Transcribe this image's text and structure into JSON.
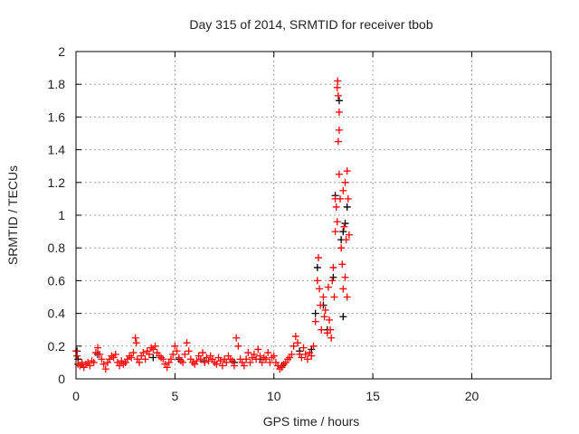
{
  "chart_data": {
    "type": "scatter",
    "title": "Day 315 of 2014, SRMTID for receiver tbob",
    "xlabel": "GPS time / hours",
    "ylabel": "SRMTID / TECUs",
    "xlim": [
      0,
      24
    ],
    "ylim": [
      0,
      2
    ],
    "xticks": [
      "0",
      "5",
      "10",
      "15",
      "20"
    ],
    "xtick_values": [
      0,
      5,
      10,
      15,
      20
    ],
    "yticks": [
      "0",
      "0.2",
      "0.4",
      "0.6",
      "0.8",
      "1",
      "1.2",
      "1.4",
      "1.6",
      "1.8",
      "2"
    ],
    "ytick_values": [
      0,
      0.2,
      0.4,
      0.6,
      0.8,
      1,
      1.2,
      1.4,
      1.6,
      1.8,
      2
    ],
    "grid": true,
    "series": [
      {
        "name": "black",
        "color": "#000000",
        "points": [
          [
            0.05,
            0.17
          ],
          [
            0.1,
            0.12
          ],
          [
            0.3,
            0.09
          ],
          [
            1.1,
            0.15
          ],
          [
            2.5,
            0.1
          ],
          [
            3.9,
            0.13
          ],
          [
            5.2,
            0.12
          ],
          [
            6.5,
            0.11
          ],
          [
            8.0,
            0.1
          ],
          [
            9.3,
            0.12
          ],
          [
            10.4,
            0.08
          ],
          [
            11.3,
            0.17
          ],
          [
            11.9,
            0.18
          ],
          [
            12.1,
            0.4
          ],
          [
            12.2,
            0.68
          ],
          [
            12.5,
            0.45
          ],
          [
            12.7,
            0.3
          ],
          [
            13.0,
            0.62
          ],
          [
            13.1,
            1.12
          ],
          [
            13.3,
            1.7
          ],
          [
            13.4,
            0.85
          ],
          [
            13.5,
            0.38
          ],
          [
            13.6,
            0.95
          ],
          [
            13.7,
            1.05
          ],
          [
            13.5,
            0.9
          ]
        ]
      },
      {
        "name": "red",
        "color": "#ff0000",
        "points": [
          [
            0.0,
            0.17
          ],
          [
            0.05,
            0.14
          ],
          [
            0.1,
            0.09
          ],
          [
            0.2,
            0.08
          ],
          [
            0.3,
            0.1
          ],
          [
            0.4,
            0.07
          ],
          [
            0.5,
            0.09
          ],
          [
            0.6,
            0.1
          ],
          [
            0.7,
            0.08
          ],
          [
            0.8,
            0.11
          ],
          [
            0.9,
            0.1
          ],
          [
            1.0,
            0.16
          ],
          [
            1.1,
            0.19
          ],
          [
            1.2,
            0.15
          ],
          [
            1.3,
            0.12
          ],
          [
            1.4,
            0.09
          ],
          [
            1.5,
            0.06
          ],
          [
            1.6,
            0.1
          ],
          [
            1.7,
            0.12
          ],
          [
            1.8,
            0.14
          ],
          [
            1.9,
            0.13
          ],
          [
            2.0,
            0.15
          ],
          [
            2.1,
            0.1
          ],
          [
            2.2,
            0.08
          ],
          [
            2.3,
            0.11
          ],
          [
            2.4,
            0.09
          ],
          [
            2.5,
            0.1
          ],
          [
            2.6,
            0.12
          ],
          [
            2.7,
            0.14
          ],
          [
            2.8,
            0.13
          ],
          [
            2.9,
            0.16
          ],
          [
            3.0,
            0.25
          ],
          [
            3.05,
            0.22
          ],
          [
            3.1,
            0.12
          ],
          [
            3.2,
            0.1
          ],
          [
            3.3,
            0.14
          ],
          [
            3.4,
            0.16
          ],
          [
            3.5,
            0.12
          ],
          [
            3.6,
            0.17
          ],
          [
            3.7,
            0.15
          ],
          [
            3.8,
            0.19
          ],
          [
            3.9,
            0.18
          ],
          [
            4.0,
            0.2
          ],
          [
            4.1,
            0.16
          ],
          [
            4.2,
            0.14
          ],
          [
            4.3,
            0.13
          ],
          [
            4.4,
            0.12
          ],
          [
            4.5,
            0.09
          ],
          [
            4.6,
            0.07
          ],
          [
            4.7,
            0.1
          ],
          [
            4.8,
            0.12
          ],
          [
            4.9,
            0.15
          ],
          [
            5.0,
            0.2
          ],
          [
            5.1,
            0.17
          ],
          [
            5.2,
            0.13
          ],
          [
            5.3,
            0.11
          ],
          [
            5.4,
            0.1
          ],
          [
            5.5,
            0.15
          ],
          [
            5.6,
            0.22
          ],
          [
            5.7,
            0.17
          ],
          [
            5.8,
            0.12
          ],
          [
            5.9,
            0.1
          ],
          [
            6.0,
            0.09
          ],
          [
            6.1,
            0.11
          ],
          [
            6.2,
            0.14
          ],
          [
            6.3,
            0.12
          ],
          [
            6.4,
            0.16
          ],
          [
            6.5,
            0.1
          ],
          [
            6.6,
            0.13
          ],
          [
            6.7,
            0.11
          ],
          [
            6.8,
            0.14
          ],
          [
            6.9,
            0.12
          ],
          [
            7.0,
            0.1
          ],
          [
            7.1,
            0.09
          ],
          [
            7.2,
            0.13
          ],
          [
            7.3,
            0.11
          ],
          [
            7.4,
            0.08
          ],
          [
            7.5,
            0.12
          ],
          [
            7.6,
            0.1
          ],
          [
            7.7,
            0.14
          ],
          [
            7.8,
            0.12
          ],
          [
            7.9,
            0.11
          ],
          [
            8.0,
            0.08
          ],
          [
            8.1,
            0.25
          ],
          [
            8.2,
            0.2
          ],
          [
            8.3,
            0.12
          ],
          [
            8.4,
            0.1
          ],
          [
            8.5,
            0.08
          ],
          [
            8.6,
            0.12
          ],
          [
            8.7,
            0.16
          ],
          [
            8.8,
            0.1
          ],
          [
            8.9,
            0.13
          ],
          [
            9.0,
            0.15
          ],
          [
            9.1,
            0.12
          ],
          [
            9.2,
            0.18
          ],
          [
            9.3,
            0.14
          ],
          [
            9.4,
            0.1
          ],
          [
            9.5,
            0.13
          ],
          [
            9.6,
            0.12
          ],
          [
            9.7,
            0.16
          ],
          [
            9.8,
            0.1
          ],
          [
            9.9,
            0.13
          ],
          [
            10.0,
            0.14
          ],
          [
            10.1,
            0.1
          ],
          [
            10.2,
            0.08
          ],
          [
            10.3,
            0.06
          ],
          [
            10.4,
            0.07
          ],
          [
            10.5,
            0.09
          ],
          [
            10.6,
            0.1
          ],
          [
            10.7,
            0.12
          ],
          [
            10.8,
            0.13
          ],
          [
            10.9,
            0.15
          ],
          [
            11.0,
            0.2
          ],
          [
            11.1,
            0.26
          ],
          [
            11.2,
            0.22
          ],
          [
            11.3,
            0.15
          ],
          [
            11.4,
            0.13
          ],
          [
            11.5,
            0.19
          ],
          [
            11.6,
            0.15
          ],
          [
            11.7,
            0.12
          ],
          [
            11.8,
            0.16
          ],
          [
            11.9,
            0.14
          ],
          [
            12.0,
            0.2
          ],
          [
            12.1,
            0.35
          ],
          [
            12.2,
            0.6
          ],
          [
            12.25,
            0.74
          ],
          [
            12.3,
            0.55
          ],
          [
            12.35,
            0.45
          ],
          [
            12.4,
            0.3
          ],
          [
            12.5,
            0.5
          ],
          [
            12.55,
            0.38
          ],
          [
            12.6,
            0.42
          ],
          [
            12.7,
            0.28
          ],
          [
            12.75,
            0.56
          ],
          [
            12.8,
            0.36
          ],
          [
            12.85,
            0.3
          ],
          [
            12.9,
            0.25
          ],
          [
            12.95,
            0.6
          ],
          [
            13.0,
            0.68
          ],
          [
            13.05,
            0.5
          ],
          [
            13.1,
            0.9
          ],
          [
            13.1,
            1.1
          ],
          [
            13.15,
            1.05
          ],
          [
            13.2,
            0.96
          ],
          [
            13.2,
            1.78
          ],
          [
            13.22,
            1.82
          ],
          [
            13.25,
            1.73
          ],
          [
            13.25,
            1.45
          ],
          [
            13.3,
            1.25
          ],
          [
            13.3,
            1.52
          ],
          [
            13.3,
            1.63
          ],
          [
            13.35,
            1.1
          ],
          [
            13.4,
            0.8
          ],
          [
            13.45,
            0.7
          ],
          [
            13.5,
            0.55
          ],
          [
            13.5,
            1.15
          ],
          [
            13.55,
            0.93
          ],
          [
            13.6,
            0.62
          ],
          [
            13.6,
            1.2
          ],
          [
            13.65,
            0.85
          ],
          [
            13.7,
            0.5
          ],
          [
            13.7,
            1.27
          ],
          [
            13.75,
            1.1
          ],
          [
            13.8,
            0.88
          ]
        ]
      }
    ]
  }
}
